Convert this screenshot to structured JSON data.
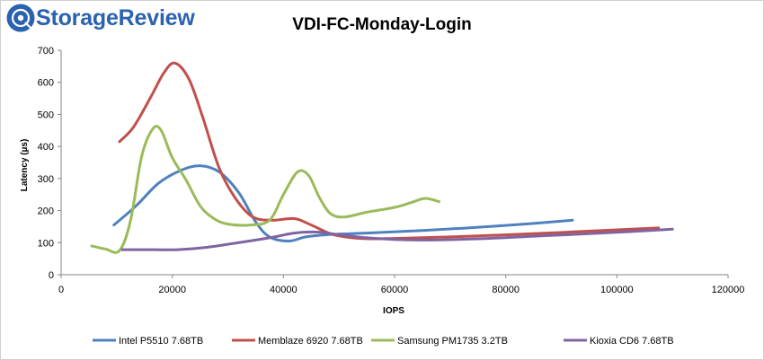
{
  "brand": {
    "name": "StorageReview",
    "accent": "#2a62b0",
    "icon": "storagereview-logo-icon"
  },
  "chart_data": {
    "type": "line",
    "title": "VDI-FC-Monday-Login",
    "xlabel": "IOPS",
    "ylabel": "Latency (µs)",
    "xlim": [
      0,
      120000
    ],
    "ylim": [
      0,
      700
    ],
    "xticks": [
      0,
      20000,
      40000,
      60000,
      80000,
      100000,
      120000
    ],
    "yticks": [
      0,
      100,
      200,
      300,
      400,
      500,
      600,
      700
    ],
    "grid": false,
    "legend": "bottom",
    "series": [
      {
        "name": "Intel P5510 7.68TB",
        "color": "#4f81bd",
        "points": [
          [
            9500,
            155
          ],
          [
            13500,
            215
          ],
          [
            17500,
            285
          ],
          [
            21500,
            325
          ],
          [
            25000,
            340
          ],
          [
            28500,
            320
          ],
          [
            32000,
            255
          ],
          [
            35000,
            165
          ],
          [
            37500,
            118
          ],
          [
            41000,
            105
          ],
          [
            44000,
            118
          ],
          [
            48000,
            125
          ],
          [
            55000,
            130
          ],
          [
            65000,
            138
          ],
          [
            75000,
            148
          ],
          [
            85000,
            160
          ],
          [
            92000,
            170
          ]
        ]
      },
      {
        "name": "Memblaze 6920 7.68TB",
        "color": "#c0504d",
        "points": [
          [
            10500,
            415
          ],
          [
            13000,
            460
          ],
          [
            16000,
            550
          ],
          [
            18500,
            630
          ],
          [
            20500,
            660
          ],
          [
            23000,
            610
          ],
          [
            25500,
            490
          ],
          [
            28500,
            330
          ],
          [
            31500,
            235
          ],
          [
            34500,
            180
          ],
          [
            38000,
            170
          ],
          [
            42000,
            175
          ],
          [
            45000,
            155
          ],
          [
            49000,
            125
          ],
          [
            54000,
            113
          ],
          [
            60000,
            113
          ],
          [
            70000,
            118
          ],
          [
            85000,
            128
          ],
          [
            100000,
            140
          ],
          [
            107500,
            146
          ]
        ]
      },
      {
        "name": "Samsung PM1735 3.2TB",
        "color": "#9bbb59",
        "points": [
          [
            5500,
            90
          ],
          [
            8000,
            80
          ],
          [
            10500,
            75
          ],
          [
            12500,
            170
          ],
          [
            14500,
            370
          ],
          [
            16500,
            455
          ],
          [
            18000,
            450
          ],
          [
            20000,
            365
          ],
          [
            22500,
            295
          ],
          [
            25000,
            215
          ],
          [
            27500,
            175
          ],
          [
            30000,
            158
          ],
          [
            34000,
            155
          ],
          [
            37500,
            170
          ],
          [
            40000,
            250
          ],
          [
            42500,
            320
          ],
          [
            44500,
            310
          ],
          [
            46500,
            240
          ],
          [
            48500,
            190
          ],
          [
            51000,
            180
          ],
          [
            55000,
            195
          ],
          [
            60000,
            210
          ],
          [
            63000,
            225
          ],
          [
            65500,
            238
          ],
          [
            68000,
            228
          ]
        ]
      },
      {
        "name": "Kioxia CD6 7.68TB",
        "color": "#8064a2",
        "points": [
          [
            11000,
            78
          ],
          [
            17000,
            78
          ],
          [
            21000,
            78
          ],
          [
            26000,
            85
          ],
          [
            30000,
            95
          ],
          [
            35000,
            108
          ],
          [
            39000,
            120
          ],
          [
            42000,
            130
          ],
          [
            46000,
            133
          ],
          [
            50000,
            125
          ],
          [
            55000,
            115
          ],
          [
            60000,
            110
          ],
          [
            65000,
            108
          ],
          [
            75000,
            112
          ],
          [
            85000,
            120
          ],
          [
            95000,
            128
          ],
          [
            103000,
            135
          ],
          [
            110000,
            142
          ]
        ]
      }
    ]
  }
}
